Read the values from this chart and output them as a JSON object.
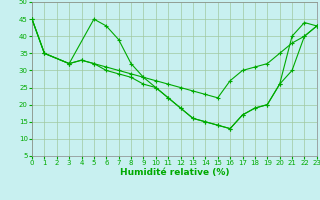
{
  "xlabel": "Humidité relative (%)",
  "background_color": "#c8f0f0",
  "grid_color": "#a0c8a0",
  "line_color": "#00aa00",
  "series1_x": [
    0,
    1,
    3,
    5,
    6,
    7,
    8,
    9,
    10,
    11,
    12,
    13,
    14,
    15,
    16,
    17,
    18,
    19,
    20,
    21,
    22,
    23
  ],
  "series1_y": [
    45,
    35,
    32,
    45,
    43,
    39,
    32,
    28,
    25,
    22,
    19,
    16,
    15,
    14,
    13,
    17,
    19,
    20,
    26,
    40,
    44,
    43
  ],
  "series2_x": [
    0,
    1,
    3,
    4,
    5,
    6,
    7,
    8,
    9,
    10,
    11,
    12,
    13,
    14,
    15,
    16,
    17,
    18,
    19,
    20,
    21,
    22,
    23
  ],
  "series2_y": [
    45,
    35,
    32,
    33,
    32,
    31,
    30,
    29,
    28,
    27,
    26,
    25,
    24,
    23,
    22,
    27,
    30,
    31,
    32,
    35,
    38,
    40,
    43
  ],
  "series3_x": [
    0,
    1,
    3,
    4,
    5,
    6,
    7,
    8,
    9,
    10,
    11,
    12,
    13,
    14,
    15,
    16,
    17,
    18,
    19,
    20,
    21,
    22,
    23
  ],
  "series3_y": [
    45,
    35,
    32,
    33,
    32,
    30,
    29,
    28,
    26,
    25,
    22,
    19,
    16,
    15,
    14,
    13,
    17,
    19,
    20,
    26,
    30,
    40,
    43
  ],
  "ylim": [
    5,
    50
  ],
  "xlim": [
    0,
    23
  ],
  "yticks": [
    5,
    10,
    15,
    20,
    25,
    30,
    35,
    40,
    45,
    50
  ],
  "xticks": [
    0,
    1,
    2,
    3,
    4,
    5,
    6,
    7,
    8,
    9,
    10,
    11,
    12,
    13,
    14,
    15,
    16,
    17,
    18,
    19,
    20,
    21,
    22,
    23
  ],
  "xlabel_fontsize": 6.5,
  "tick_fontsize": 5.0,
  "linewidth": 0.8,
  "markersize": 3.0
}
